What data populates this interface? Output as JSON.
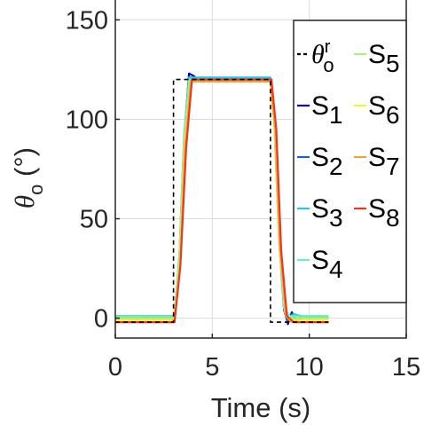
{
  "chart_data": {
    "type": "line",
    "xlabel": "Time (s)",
    "ylabel": {
      "symbol": "θ",
      "subscript": "o",
      "unit": " (°)"
    },
    "xlim": [
      0,
      15
    ],
    "ylim": [
      -10,
      160
    ],
    "xticks": [
      "0",
      "5",
      "10",
      "15"
    ],
    "yticks": [
      "0",
      "50",
      "100",
      "150"
    ],
    "grid": true,
    "legend": {
      "placement": "top-right",
      "entries": [
        {
          "key": "ref",
          "main": "θ",
          "sub": "o",
          "sup": "r"
        },
        {
          "key": "S1",
          "main": "S",
          "sub": "1"
        },
        {
          "key": "S2",
          "main": "S",
          "sub": "2"
        },
        {
          "key": "S3",
          "main": "S",
          "sub": "3"
        },
        {
          "key": "S4",
          "main": "S",
          "sub": "4"
        },
        {
          "key": "S5",
          "main": "S",
          "sub": "5"
        },
        {
          "key": "S6",
          "main": "S",
          "sub": "6"
        },
        {
          "key": "S7",
          "main": "S",
          "sub": "7"
        },
        {
          "key": "S8",
          "main": "S",
          "sub": "8"
        }
      ]
    },
    "series": [
      {
        "key": "ref",
        "color": "#000000",
        "dash": true,
        "points": [
          [
            0,
            -2
          ],
          [
            3,
            -2
          ],
          [
            3,
            120
          ],
          [
            8,
            120
          ],
          [
            8,
            -2
          ],
          [
            11,
            -2
          ]
        ]
      },
      {
        "key": "S1",
        "color": "#0000b0",
        "points": [
          [
            0,
            1
          ],
          [
            3.05,
            1
          ],
          [
            3.3,
            30
          ],
          [
            3.55,
            90
          ],
          [
            3.8,
            123
          ],
          [
            4.0,
            122
          ],
          [
            4.3,
            120
          ],
          [
            8.0,
            120
          ],
          [
            8.2,
            100
          ],
          [
            8.45,
            40
          ],
          [
            8.7,
            5
          ],
          [
            8.9,
            -3
          ],
          [
            9.1,
            3
          ],
          [
            9.3,
            -2
          ],
          [
            9.6,
            1
          ],
          [
            10,
            0
          ],
          [
            11,
            0.5
          ]
        ]
      },
      {
        "key": "S2",
        "color": "#1f5fd6",
        "points": [
          [
            0,
            0
          ],
          [
            3.05,
            0
          ],
          [
            3.3,
            30
          ],
          [
            3.55,
            88
          ],
          [
            3.8,
            121
          ],
          [
            4.1,
            121
          ],
          [
            4.4,
            120
          ],
          [
            8.0,
            120
          ],
          [
            8.2,
            98
          ],
          [
            8.45,
            38
          ],
          [
            8.7,
            4
          ],
          [
            8.9,
            -2
          ],
          [
            9.1,
            2
          ],
          [
            9.4,
            -1
          ],
          [
            9.8,
            1
          ],
          [
            11,
            0.5
          ]
        ]
      },
      {
        "key": "S3",
        "color": "#22c7ef",
        "points": [
          [
            0,
            1
          ],
          [
            3.05,
            1
          ],
          [
            3.3,
            32
          ],
          [
            3.55,
            92
          ],
          [
            3.8,
            121
          ],
          [
            4.0,
            121
          ],
          [
            8.0,
            121
          ],
          [
            8.2,
            100
          ],
          [
            8.45,
            40
          ],
          [
            8.7,
            6
          ],
          [
            8.9,
            0
          ],
          [
            9.2,
            2
          ],
          [
            9.6,
            1
          ],
          [
            11,
            1
          ]
        ]
      },
      {
        "key": "S4",
        "color": "#66f0c0",
        "points": [
          [
            0,
            1
          ],
          [
            3.05,
            1
          ],
          [
            3.3,
            30
          ],
          [
            3.55,
            90
          ],
          [
            3.8,
            120
          ],
          [
            8.0,
            120
          ],
          [
            8.2,
            98
          ],
          [
            8.45,
            38
          ],
          [
            8.7,
            5
          ],
          [
            9.0,
            1
          ],
          [
            11,
            1
          ]
        ]
      },
      {
        "key": "S5",
        "color": "#a8f07a",
        "points": [
          [
            0,
            0
          ],
          [
            3.05,
            0
          ],
          [
            3.3,
            30
          ],
          [
            3.55,
            88
          ],
          [
            3.85,
            119
          ],
          [
            8.0,
            119
          ],
          [
            8.2,
            97
          ],
          [
            8.45,
            37
          ],
          [
            8.75,
            3
          ],
          [
            9.0,
            0
          ],
          [
            11,
            0
          ]
        ]
      },
      {
        "key": "S6",
        "color": "#f7f03a",
        "points": [
          [
            0,
            -1
          ],
          [
            3.05,
            -1
          ],
          [
            3.35,
            28
          ],
          [
            3.6,
            88
          ],
          [
            3.9,
            119
          ],
          [
            8.0,
            119
          ],
          [
            8.25,
            96
          ],
          [
            8.5,
            36
          ],
          [
            8.8,
            2
          ],
          [
            9.1,
            -1
          ],
          [
            11,
            -1
          ]
        ]
      },
      {
        "key": "S7",
        "color": "#f7a030",
        "points": [
          [
            0,
            -2
          ],
          [
            3.05,
            -2
          ],
          [
            3.35,
            27
          ],
          [
            3.6,
            86
          ],
          [
            3.9,
            119
          ],
          [
            8.0,
            119
          ],
          [
            8.25,
            95
          ],
          [
            8.5,
            35
          ],
          [
            8.8,
            1
          ],
          [
            9.1,
            -2
          ],
          [
            11,
            -2
          ]
        ]
      },
      {
        "key": "S8",
        "color": "#f53518",
        "points": [
          [
            0,
            -2
          ],
          [
            3.05,
            -2
          ],
          [
            3.35,
            26
          ],
          [
            3.65,
            85
          ],
          [
            3.95,
            120
          ],
          [
            8.05,
            120
          ],
          [
            8.3,
            95
          ],
          [
            8.55,
            34
          ],
          [
            8.85,
            1
          ],
          [
            9.2,
            -2
          ],
          [
            11,
            -2
          ]
        ]
      }
    ]
  }
}
